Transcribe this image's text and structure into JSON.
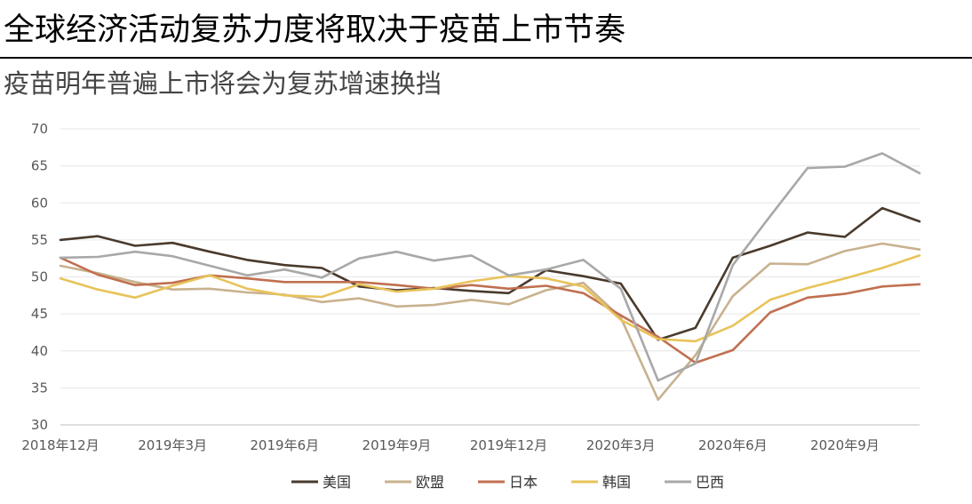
{
  "header": {
    "title": "全球经济活动复苏力度将取决于疫苗上市节奏",
    "subtitle": "疫苗明年普遍上市将会为复苏增速换挡"
  },
  "chart_data": {
    "type": "line",
    "ylim": [
      30,
      70
    ],
    "yticks": [
      30,
      35,
      40,
      45,
      50,
      55,
      60,
      65,
      70
    ],
    "grid": true,
    "legend_position": "bottom-center",
    "xtick_labels": [
      {
        "index": 0,
        "label": "2018年12月"
      },
      {
        "index": 3,
        "label": "2019年3月"
      },
      {
        "index": 6,
        "label": "2019年6月"
      },
      {
        "index": 9,
        "label": "2019年9月"
      },
      {
        "index": 12,
        "label": "2019年12月"
      },
      {
        "index": 15,
        "label": "2020年3月"
      },
      {
        "index": 18,
        "label": "2020年6月"
      },
      {
        "index": 21,
        "label": "2020年9月"
      }
    ],
    "x": [
      "2018-12",
      "2019-01",
      "2019-02",
      "2019-03",
      "2019-04",
      "2019-05",
      "2019-06",
      "2019-07",
      "2019-08",
      "2019-09",
      "2019-10",
      "2019-11",
      "2019-12",
      "2020-01",
      "2020-02",
      "2020-03",
      "2020-04",
      "2020-05",
      "2020-06",
      "2020-07",
      "2020-08",
      "2020-09",
      "2020-10",
      "2020-11"
    ],
    "series": [
      {
        "name": "美国",
        "color": "#4a3a2c",
        "values": [
          55.0,
          55.5,
          54.2,
          54.6,
          53.4,
          52.3,
          51.6,
          51.2,
          48.7,
          48.2,
          48.5,
          48.1,
          47.8,
          50.9,
          50.1,
          49.1,
          41.5,
          43.1,
          52.6,
          54.2,
          56.0,
          55.4,
          59.3,
          57.5
        ]
      },
      {
        "name": "欧盟",
        "color": "#c8b28f",
        "values": [
          51.5,
          50.5,
          49.3,
          48.3,
          48.4,
          47.9,
          47.6,
          46.6,
          47.1,
          46.0,
          46.2,
          46.9,
          46.3,
          48.2,
          49.2,
          44.5,
          33.4,
          39.4,
          47.4,
          51.8,
          51.7,
          53.5,
          54.5,
          53.7
        ]
      },
      {
        "name": "日本",
        "color": "#c07050",
        "values": [
          52.6,
          50.3,
          48.9,
          49.2,
          50.2,
          49.8,
          49.3,
          49.3,
          49.3,
          48.9,
          48.4,
          48.9,
          48.4,
          48.8,
          47.8,
          44.8,
          41.9,
          38.4,
          40.1,
          45.2,
          47.2,
          47.7,
          48.7,
          49.0
        ]
      },
      {
        "name": "韩国",
        "color": "#e8c35a",
        "values": [
          49.8,
          48.3,
          47.2,
          48.8,
          50.2,
          48.4,
          47.5,
          47.3,
          49.0,
          48.0,
          48.4,
          49.4,
          50.1,
          49.8,
          48.7,
          44.2,
          41.6,
          41.3,
          43.4,
          46.9,
          48.5,
          49.8,
          51.2,
          52.9
        ]
      },
      {
        "name": "巴西",
        "color": "#a8a8a8",
        "values": [
          52.6,
          52.7,
          53.4,
          52.8,
          51.5,
          50.2,
          51.0,
          49.9,
          52.5,
          53.4,
          52.2,
          52.9,
          50.2,
          51.0,
          52.3,
          48.4,
          36.0,
          38.3,
          51.6,
          58.2,
          64.7,
          64.9,
          66.7,
          64.0
        ]
      }
    ]
  }
}
